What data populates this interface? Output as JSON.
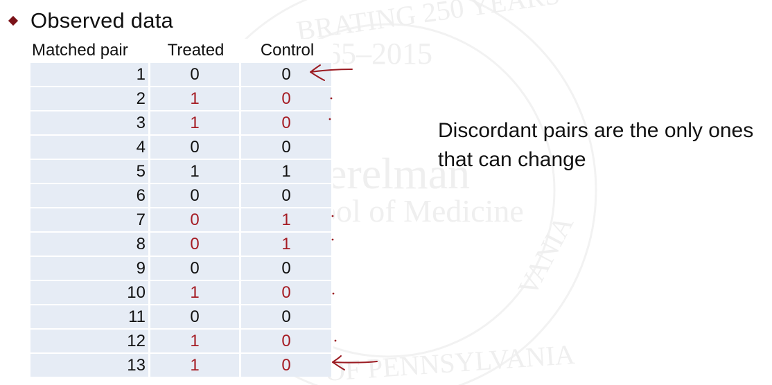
{
  "slide": {
    "bullet": "Observed data",
    "annotation": "Discordant pairs are the only ones that can change"
  },
  "table": {
    "headers": [
      "Matched pair",
      "Treated",
      "Control"
    ],
    "rows": [
      {
        "pair": "1",
        "treated": "0",
        "control": "0",
        "discordant": false
      },
      {
        "pair": "2",
        "treated": "1",
        "control": "0",
        "discordant": true
      },
      {
        "pair": "3",
        "treated": "1",
        "control": "0",
        "discordant": true
      },
      {
        "pair": "4",
        "treated": "0",
        "control": "0",
        "discordant": false
      },
      {
        "pair": "5",
        "treated": "1",
        "control": "1",
        "discordant": false
      },
      {
        "pair": "6",
        "treated": "0",
        "control": "0",
        "discordant": false
      },
      {
        "pair": "7",
        "treated": "0",
        "control": "1",
        "discordant": true
      },
      {
        "pair": "8",
        "treated": "0",
        "control": "1",
        "discordant": true
      },
      {
        "pair": "9",
        "treated": "0",
        "control": "0",
        "discordant": false
      },
      {
        "pair": "10",
        "treated": "1",
        "control": "0",
        "discordant": true
      },
      {
        "pair": "11",
        "treated": "0",
        "control": "0",
        "discordant": false
      },
      {
        "pair": "12",
        "treated": "1",
        "control": "0",
        "discordant": true
      },
      {
        "pair": "13",
        "treated": "1",
        "control": "0",
        "discordant": true
      }
    ]
  },
  "colors": {
    "accent": "#a51c24",
    "bullet": "#7b1218",
    "cell_fill": "#e6ecf5",
    "ink": "#9b1b22"
  },
  "watermark": {
    "lines": [
      "BRATING 250 YEARS",
      "65–2015",
      "erelman",
      "ool of Medicine",
      "OF PENNSYLVANIA",
      "VANIA"
    ]
  }
}
